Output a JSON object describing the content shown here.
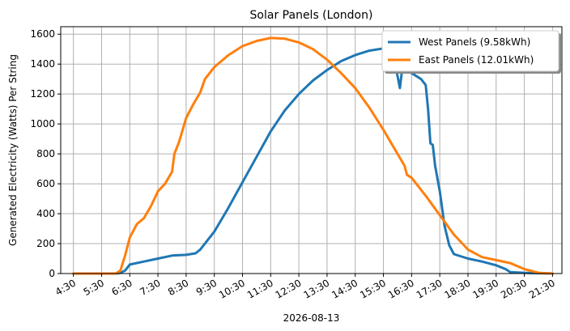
{
  "chart_data": {
    "type": "line",
    "title": "Solar Panels (London)",
    "xlabel": "2026-08-13",
    "ylabel": "Generated Electricity (Watts) Per String",
    "xlim": [
      "4:30",
      "21:50"
    ],
    "ylim": [
      0,
      1650
    ],
    "x_ticks": [
      "4:30",
      "5:30",
      "6:30",
      "7:30",
      "8:30",
      "9:30",
      "10:30",
      "11:30",
      "12:30",
      "13:30",
      "14:30",
      "15:30",
      "16:30",
      "17:30",
      "18:30",
      "19:30",
      "20:30",
      "21:30"
    ],
    "y_ticks": [
      0,
      200,
      400,
      600,
      800,
      1000,
      1200,
      1400,
      1600
    ],
    "grid": true,
    "legend_position": "top-right",
    "series": [
      {
        "name": "West Panels (9.58kWh)",
        "color": "#1f77b4",
        "points": [
          [
            "4:30",
            0
          ],
          [
            "5:30",
            0
          ],
          [
            "6:00",
            0
          ],
          [
            "6:10",
            5
          ],
          [
            "6:20",
            20
          ],
          [
            "6:30",
            60
          ],
          [
            "7:00",
            80
          ],
          [
            "7:30",
            100
          ],
          [
            "8:00",
            120
          ],
          [
            "8:30",
            125
          ],
          [
            "8:50",
            135
          ],
          [
            "9:00",
            160
          ],
          [
            "9:30",
            280
          ],
          [
            "10:00",
            440
          ],
          [
            "10:30",
            610
          ],
          [
            "11:00",
            780
          ],
          [
            "11:30",
            950
          ],
          [
            "12:00",
            1090
          ],
          [
            "12:30",
            1200
          ],
          [
            "13:00",
            1290
          ],
          [
            "13:30",
            1360
          ],
          [
            "14:00",
            1420
          ],
          [
            "14:30",
            1460
          ],
          [
            "15:00",
            1490
          ],
          [
            "15:30",
            1505
          ],
          [
            "15:45",
            1500
          ],
          [
            "15:52",
            1440
          ],
          [
            "16:00",
            1320
          ],
          [
            "16:05",
            1240
          ],
          [
            "16:10",
            1370
          ],
          [
            "16:20",
            1360
          ],
          [
            "16:30",
            1340
          ],
          [
            "16:50",
            1300
          ],
          [
            "17:00",
            1260
          ],
          [
            "17:05",
            1100
          ],
          [
            "17:10",
            870
          ],
          [
            "17:15",
            860
          ],
          [
            "17:20",
            720
          ],
          [
            "17:30",
            550
          ],
          [
            "17:40",
            320
          ],
          [
            "17:50",
            190
          ],
          [
            "18:00",
            130
          ],
          [
            "18:30",
            100
          ],
          [
            "19:00",
            80
          ],
          [
            "19:30",
            55
          ],
          [
            "19:50",
            30
          ],
          [
            "20:00",
            10
          ],
          [
            "20:30",
            5
          ],
          [
            "21:00",
            2
          ],
          [
            "21:30",
            0
          ]
        ]
      },
      {
        "name": "East Panels (12.01kWh)",
        "color": "#ff7f0e",
        "points": [
          [
            "4:30",
            0
          ],
          [
            "5:30",
            0
          ],
          [
            "6:00",
            0
          ],
          [
            "6:10",
            20
          ],
          [
            "6:20",
            120
          ],
          [
            "6:30",
            240
          ],
          [
            "6:45",
            330
          ],
          [
            "7:00",
            370
          ],
          [
            "7:15",
            450
          ],
          [
            "7:30",
            550
          ],
          [
            "7:45",
            600
          ],
          [
            "8:00",
            680
          ],
          [
            "8:05",
            800
          ],
          [
            "8:15",
            880
          ],
          [
            "8:30",
            1040
          ],
          [
            "8:45",
            1130
          ],
          [
            "9:00",
            1210
          ],
          [
            "9:10",
            1300
          ],
          [
            "9:30",
            1380
          ],
          [
            "10:00",
            1460
          ],
          [
            "10:30",
            1520
          ],
          [
            "11:00",
            1555
          ],
          [
            "11:30",
            1575
          ],
          [
            "12:00",
            1570
          ],
          [
            "12:30",
            1545
          ],
          [
            "13:00",
            1500
          ],
          [
            "13:30",
            1430
          ],
          [
            "14:00",
            1340
          ],
          [
            "14:30",
            1240
          ],
          [
            "15:00",
            1110
          ],
          [
            "15:30",
            960
          ],
          [
            "16:00",
            800
          ],
          [
            "16:15",
            720
          ],
          [
            "16:20",
            660
          ],
          [
            "16:30",
            640
          ],
          [
            "17:00",
            520
          ],
          [
            "17:30",
            390
          ],
          [
            "18:00",
            260
          ],
          [
            "18:30",
            160
          ],
          [
            "19:00",
            110
          ],
          [
            "19:30",
            90
          ],
          [
            "20:00",
            70
          ],
          [
            "20:30",
            30
          ],
          [
            "21:00",
            5
          ],
          [
            "21:30",
            0
          ]
        ]
      }
    ]
  }
}
